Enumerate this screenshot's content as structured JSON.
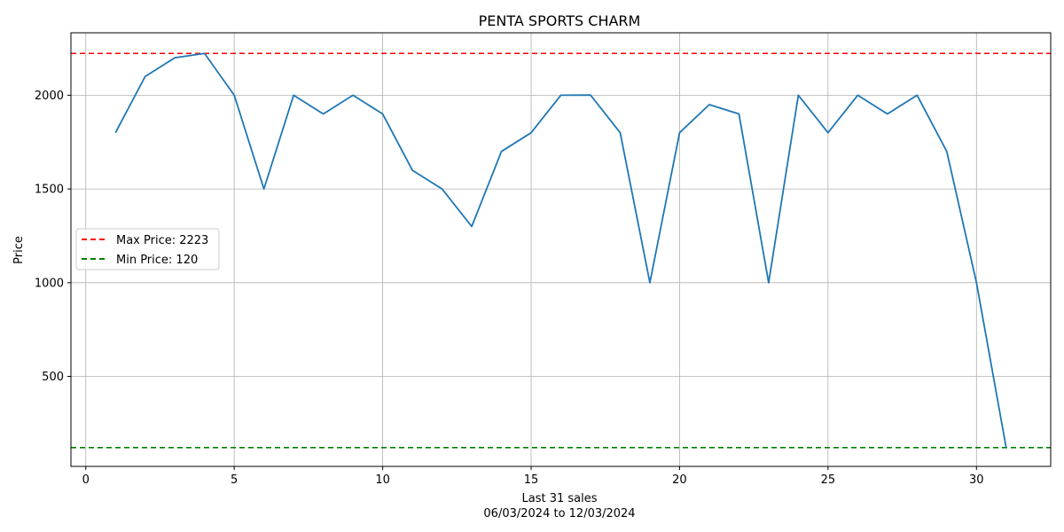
{
  "chart_data": {
    "type": "line",
    "title": "PENTA SPORTS CHARM",
    "xlabel": "Last 31 sales",
    "xlabel_sub": "06/03/2024 to 12/03/2024",
    "ylabel": "Price",
    "xlim": [
      -0.5,
      32.5
    ],
    "ylim": [
      20,
      2333
    ],
    "xticks": [
      0,
      5,
      10,
      15,
      20,
      25,
      30
    ],
    "yticks": [
      500,
      1000,
      1500,
      2000
    ],
    "grid": true,
    "legend_position": "center-left",
    "series": [
      {
        "color": "#1f77b4",
        "x": [
          1,
          2,
          3,
          4,
          5,
          6,
          7,
          8,
          9,
          10,
          11,
          12,
          13,
          14,
          15,
          16,
          17,
          18,
          19,
          20,
          21,
          22,
          23,
          24,
          25,
          26,
          27,
          28,
          29,
          30,
          31
        ],
        "y": [
          1800,
          2100,
          2200,
          2223,
          2000,
          1500,
          2000,
          1900,
          2000,
          1900,
          1600,
          1500,
          1300,
          1700,
          1800,
          2000,
          2001,
          1800,
          1000,
          1800,
          1950,
          1900,
          1000,
          2000,
          1800,
          2000,
          1900,
          2000,
          1700,
          1000,
          120
        ]
      }
    ],
    "reference_lines": [
      {
        "label": "Max Price: 2223",
        "value": 2223,
        "color": "#ff0000"
      },
      {
        "label": "Min Price: 120",
        "value": 120,
        "color": "#008000"
      }
    ]
  }
}
